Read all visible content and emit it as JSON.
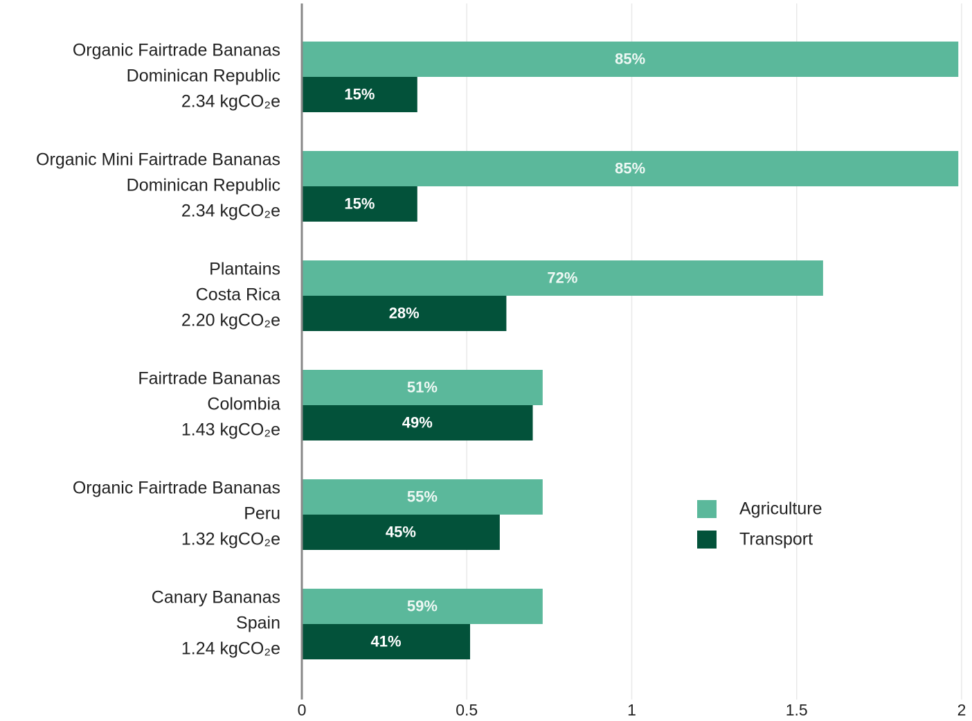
{
  "chart_data": {
    "type": "hbar",
    "categories": [
      [
        "Organic Fairtrade Bananas",
        "Dominican Republic",
        "2.34 kgCO₂e"
      ],
      [
        "Organic Mini Fairtrade Bananas",
        "Dominican Republic",
        "2.34 kgCO₂e"
      ],
      [
        "Plantains",
        "Costa Rica",
        "2.20 kgCO₂e"
      ],
      [
        "Fairtrade Bananas",
        "Colombia",
        "1.43 kgCO₂e"
      ],
      [
        "Organic Fairtrade Bananas",
        "Peru",
        "1.32 kgCO₂e"
      ],
      [
        "Canary Bananas",
        "Spain",
        "1.24 kgCO₂e"
      ]
    ],
    "series": [
      {
        "name": "Agriculture",
        "color": "#5bb89b",
        "values": [
          1.99,
          1.99,
          1.58,
          0.73,
          0.73,
          0.73
        ],
        "share_labels": [
          "85%",
          "85%",
          "72%",
          "51%",
          "55%",
          "59%"
        ]
      },
      {
        "name": "Transport",
        "color": "#03523a",
        "values": [
          0.35,
          0.35,
          0.62,
          0.7,
          0.6,
          0.51
        ],
        "share_labels": [
          "15%",
          "15%",
          "28%",
          "49%",
          "45%",
          "41%"
        ]
      }
    ],
    "xlim": [
      0,
      2
    ],
    "xticks": [
      0,
      0.5,
      1,
      1.5,
      2
    ],
    "grid": true,
    "legend": "right"
  }
}
